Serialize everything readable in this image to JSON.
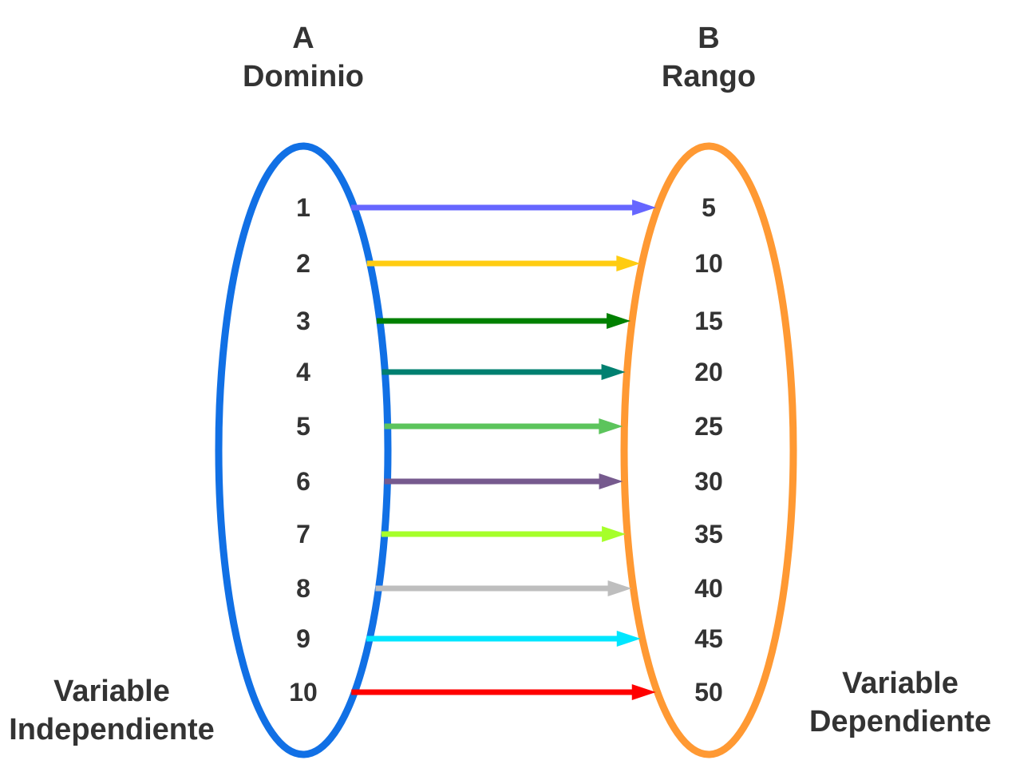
{
  "set_a": {
    "letter": "A",
    "name": "Dominio",
    "border_color": "#1170E5",
    "elements": [
      "1",
      "2",
      "3",
      "4",
      "5",
      "6",
      "7",
      "8",
      "9",
      "10"
    ]
  },
  "set_b": {
    "letter": "B",
    "name": "Rango",
    "border_color": "#FF9933",
    "elements": [
      "5",
      "10",
      "15",
      "20",
      "25",
      "30",
      "35",
      "40",
      "45",
      "50"
    ]
  },
  "arrow_colors": [
    "#6666FF",
    "#FFCC11",
    "#008000",
    "#008070",
    "#5CC45C",
    "#765A8E",
    "#A6FF2A",
    "#BEBEBE",
    "#00E6FF",
    "#FF0000"
  ],
  "labels": {
    "independent": [
      "Variable",
      "Independiente"
    ],
    "dependent": [
      "Variable",
      "Dependiente"
    ]
  }
}
